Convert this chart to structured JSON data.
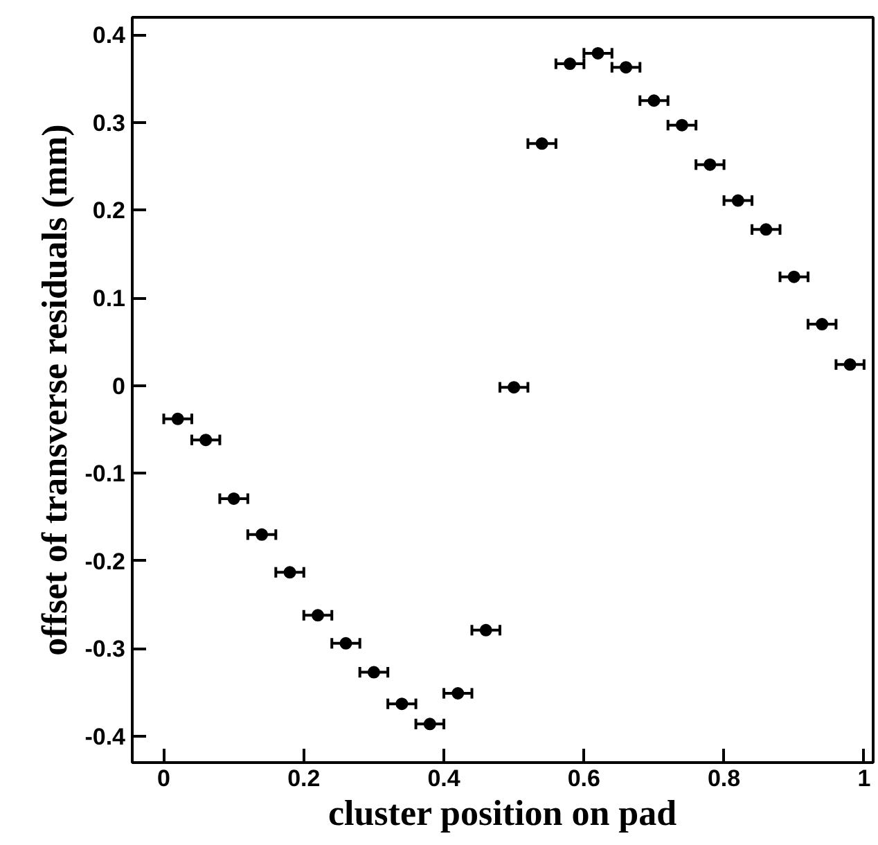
{
  "chart_data": {
    "type": "scatter",
    "xlabel": "cluster position on pad",
    "ylabel": "offset of transverse residuals (mm)",
    "x": [
      0.02,
      0.06,
      0.1,
      0.14,
      0.18,
      0.22,
      0.26,
      0.3,
      0.34,
      0.38,
      0.42,
      0.46,
      0.5,
      0.54,
      0.58,
      0.62,
      0.66,
      0.7,
      0.74,
      0.78,
      0.82,
      0.86,
      0.9,
      0.94,
      0.98
    ],
    "series": [
      {
        "color": "#000000",
        "values": [
          -0.038,
          -0.062,
          -0.129,
          -0.17,
          -0.213,
          -0.262,
          -0.294,
          -0.327,
          -0.363,
          -0.386,
          -0.351,
          -0.279,
          -0.002,
          0.276,
          0.367,
          0.379,
          0.363,
          0.325,
          0.297,
          0.252,
          0.211,
          0.178,
          0.124,
          0.07,
          0.024
        ],
        "xerrors": [
          0.02,
          0.02,
          0.02,
          0.02,
          0.02,
          0.02,
          0.02,
          0.02,
          0.02,
          0.02,
          0.02,
          0.02,
          0.02,
          0.02,
          0.02,
          0.02,
          0.02,
          0.02,
          0.02,
          0.02,
          0.02,
          0.02,
          0.02,
          0.02,
          0.02
        ]
      }
    ],
    "xlim": [
      -0.045,
      1.013
    ],
    "ylim": [
      -0.43,
      0.42
    ],
    "xticks": [
      0,
      0.2,
      0.4,
      0.6,
      0.8,
      1
    ],
    "yticks": [
      -0.4,
      -0.3,
      -0.2,
      -0.1,
      0,
      0.1,
      0.2,
      0.3,
      0.4
    ],
    "marker": "circle",
    "grid": false
  }
}
